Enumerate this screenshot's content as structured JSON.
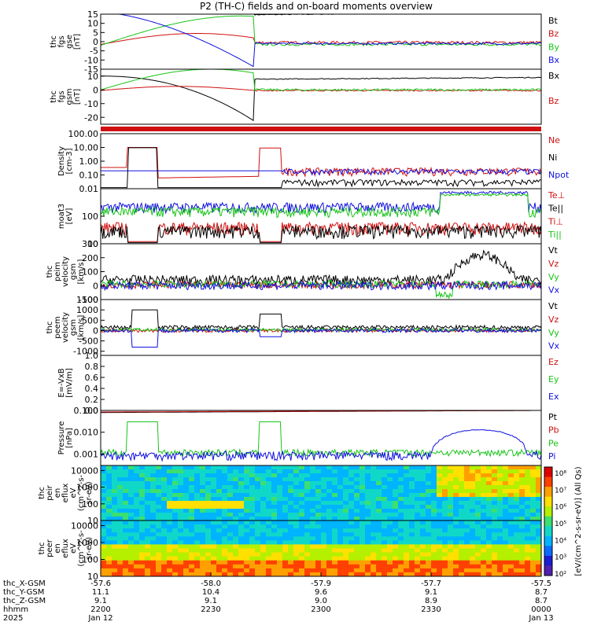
{
  "title": "P2 (TH-C) fields and on-board moments overview",
  "colors": {
    "black": "#000000",
    "red": "#d01010",
    "green": "#18c418",
    "blue": "#1010e0",
    "orange": "#ff8800"
  },
  "chart_data": {
    "type": "line",
    "time_axis": {
      "ticks": [
        "2200",
        "2230",
        "2300",
        "2330",
        "0000"
      ],
      "first_date": "Jan 12",
      "last_date": "Jan 13",
      "year": "2025",
      "rows": [
        {
          "name": "thc_X-GSM",
          "values": [
            "-57.6",
            "-58.0",
            "-57.9",
            "-57.7",
            "-57.5"
          ]
        },
        {
          "name": "thc_Y-GSM",
          "values": [
            "11.1",
            "10.4",
            "9.6",
            "9.1",
            "8.7"
          ]
        },
        {
          "name": "thc_Z-GSM",
          "values": [
            "9.1",
            "9.1",
            "9.0",
            "8.9",
            "8.7"
          ]
        },
        {
          "name": "hhmm",
          "values": [
            "2200",
            "2230",
            "2300",
            "2330",
            "0000"
          ]
        },
        {
          "name": "2025",
          "values": [
            "Jan 12",
            "",
            "",
            "",
            "Jan 13"
          ]
        }
      ]
    },
    "panels": [
      {
        "id": "fgs-gse",
        "ylabel": [
          "thc",
          "fgs",
          "gse",
          "[nT]"
        ],
        "ylim": [
          -15,
          15
        ],
        "yticks": [
          "15",
          "10",
          "5",
          "0",
          "-5",
          "-10",
          "-15"
        ],
        "legend": [
          {
            "name": "Bt",
            "color": "#000000"
          },
          {
            "name": "Bz",
            "color": "#d01010"
          },
          {
            "name": "By",
            "color": "#18c418"
          },
          {
            "name": "Bx",
            "color": "#1010e0"
          }
        ]
      },
      {
        "id": "fgs-gsm",
        "ylabel": [
          "thc",
          "fgs",
          "gsm",
          "[nT]"
        ],
        "ylim": [
          -25,
          15
        ],
        "yticks": [
          "10",
          "0",
          "-10",
          "-20"
        ],
        "legend": [
          {
            "name": "Bx",
            "color": "#000000"
          },
          {
            "name": "Bz",
            "color": "#d01010"
          }
        ]
      },
      {
        "id": "density",
        "ylabel": [
          "Density",
          "[cm-3]"
        ],
        "scale": "log",
        "ylim": [
          0.01,
          100
        ],
        "yticks": [
          "100.00",
          "10.00",
          "1.00",
          "0.10",
          "0.01"
        ],
        "legend": [
          {
            "name": "Ne",
            "color": "#d01010"
          },
          {
            "name": "Ni",
            "color": "#000000"
          },
          {
            "name": "Npot",
            "color": "#1010e0"
          }
        ]
      },
      {
        "id": "temperature",
        "ylabel": [
          "moat3",
          "[eV]"
        ],
        "scale": "log",
        "ylim": [
          10,
          1000
        ],
        "yticks": [
          "100",
          "10"
        ],
        "legend": [
          {
            "name": "Te⊥",
            "color": "#d01010"
          },
          {
            "name": "Te||",
            "color": "#000000"
          },
          {
            "name": "Ti⊥",
            "color": "#d01010"
          },
          {
            "name": "Ti||",
            "color": "#18c418"
          }
        ]
      },
      {
        "id": "peim-velocity",
        "ylabel": [
          "thc",
          "peim",
          "velocity",
          "gsm",
          "[km/s]"
        ],
        "ylim": [
          -100,
          300
        ],
        "yticks": [
          "300",
          "200",
          "100",
          "0",
          "-100"
        ],
        "legend": [
          {
            "name": "Vt",
            "color": "#000000"
          },
          {
            "name": "Vz",
            "color": "#d01010"
          },
          {
            "name": "Vy",
            "color": "#18c418"
          },
          {
            "name": "Vx",
            "color": "#1010e0"
          }
        ]
      },
      {
        "id": "peem-velocity",
        "ylabel": [
          "thc",
          "peem",
          "velocity",
          "gsm",
          "[km/s]"
        ],
        "ylim": [
          -1200,
          1500
        ],
        "yticks": [
          "1500",
          "1000",
          "500",
          "0",
          "-500",
          "-1000"
        ],
        "legend": [
          {
            "name": "Vt",
            "color": "#000000"
          },
          {
            "name": "Vz",
            "color": "#d01010"
          },
          {
            "name": "Vy",
            "color": "#18c418"
          },
          {
            "name": "Vx",
            "color": "#1010e0"
          }
        ]
      },
      {
        "id": "efield",
        "ylabel": [
          "E=-VxB",
          "[mV/m]"
        ],
        "ylim": [
          0,
          1
        ],
        "yticks": [
          "1.0",
          "0.8",
          "0.6",
          "0.4",
          "0.2",
          "0.0"
        ],
        "legend": [
          {
            "name": "Ez",
            "color": "#d01010"
          },
          {
            "name": "Ey",
            "color": "#18c418"
          },
          {
            "name": "Ex",
            "color": "#1010e0"
          }
        ]
      },
      {
        "id": "pressure",
        "ylabel": [
          "Pressure",
          "[nPa]"
        ],
        "scale": "log",
        "ylim": [
          0.0003,
          0.1
        ],
        "yticks": [
          "0.100",
          "0.010",
          "0.001"
        ],
        "legend": [
          {
            "name": "Pt",
            "color": "#000000"
          },
          {
            "name": "Pb",
            "color": "#d01010"
          },
          {
            "name": "Pe",
            "color": "#18c418"
          },
          {
            "name": "Pi",
            "color": "#1010e0"
          }
        ]
      },
      {
        "id": "peir-spec",
        "ylabel": [
          "thc",
          "peir",
          "en",
          "eflux",
          "eV",
          "(cm^2-s-",
          "sr-eV)"
        ],
        "scale": "log",
        "ylim": [
          10,
          20000
        ],
        "yticks": [
          "10000",
          "1000",
          "100",
          "10"
        ]
      },
      {
        "id": "peer-spec",
        "ylabel": [
          "thc",
          "peer",
          "en",
          "eflux",
          "eV",
          "(cm^2-s-",
          "sr-eV)"
        ],
        "scale": "log",
        "ylim": [
          10,
          20000
        ],
        "yticks": [
          "10000",
          "1000",
          "100",
          "10"
        ]
      }
    ],
    "colorbar": {
      "label": "[eV/(cm^2-s-sr-eV)] (All Qs)",
      "ticks": [
        "10⁸",
        "10⁷",
        "10⁶",
        "10⁵",
        "10⁴",
        "10³",
        "10²"
      ]
    }
  }
}
